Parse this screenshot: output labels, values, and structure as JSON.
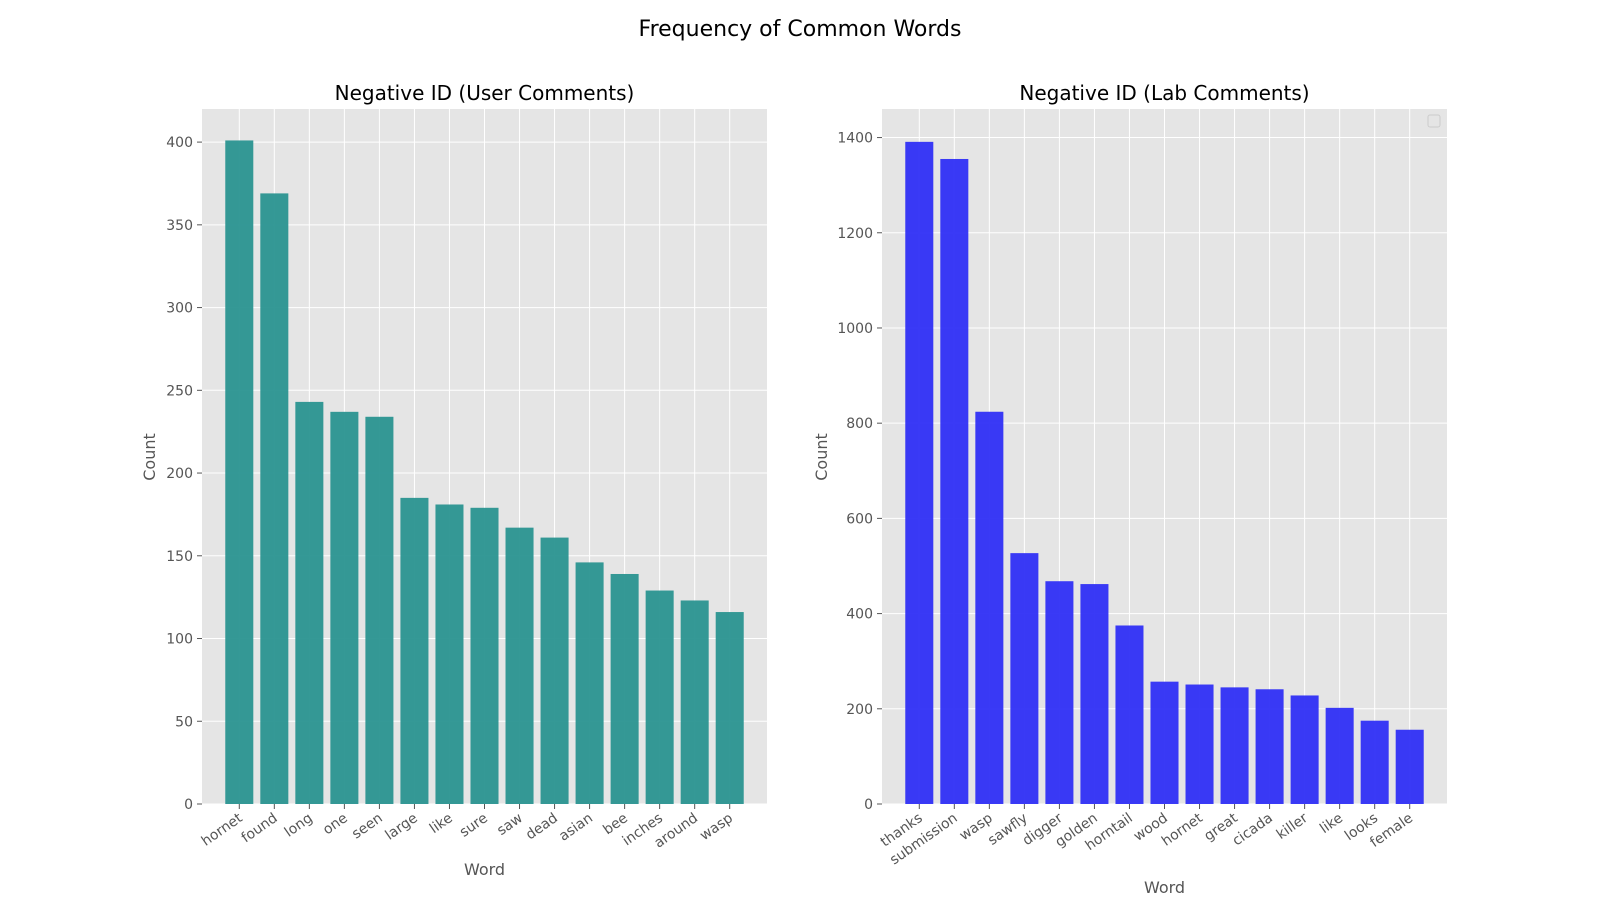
{
  "figure_title": "Frequency of Common Words",
  "chart_data": [
    {
      "type": "bar",
      "title": "Negative ID (User Comments)",
      "xlabel": "Word",
      "ylabel": "Count",
      "categories": [
        "hornet",
        "found",
        "long",
        "one",
        "seen",
        "large",
        "like",
        "sure",
        "saw",
        "dead",
        "asian",
        "bee",
        "inches",
        "around",
        "wasp"
      ],
      "values": [
        401,
        369,
        243,
        237,
        234,
        185,
        181,
        179,
        167,
        161,
        146,
        139,
        129,
        123,
        116
      ],
      "ylim": [
        0,
        420
      ],
      "yticks": [
        0,
        50,
        100,
        150,
        200,
        250,
        300,
        350,
        400
      ],
      "bar_color": "#2a9490",
      "grid": true,
      "legend": false
    },
    {
      "type": "bar",
      "title": "Negative ID (Lab Comments)",
      "xlabel": "Word",
      "ylabel": "Count",
      "categories": [
        "thanks",
        "submission",
        "wasp",
        "sawfly",
        "digger",
        "golden",
        "horntail",
        "wood",
        "hornet",
        "great",
        "cicada",
        "killer",
        "like",
        "looks",
        "female"
      ],
      "values": [
        1391,
        1355,
        824,
        527,
        468,
        462,
        375,
        257,
        251,
        245,
        241,
        228,
        202,
        175,
        156
      ],
      "ylim": [
        0,
        1460
      ],
      "yticks": [
        0,
        200,
        400,
        600,
        800,
        1000,
        1200,
        1400
      ],
      "bar_color": "#2f2ff5",
      "grid": true,
      "legend": "top-right (empty)"
    }
  ]
}
